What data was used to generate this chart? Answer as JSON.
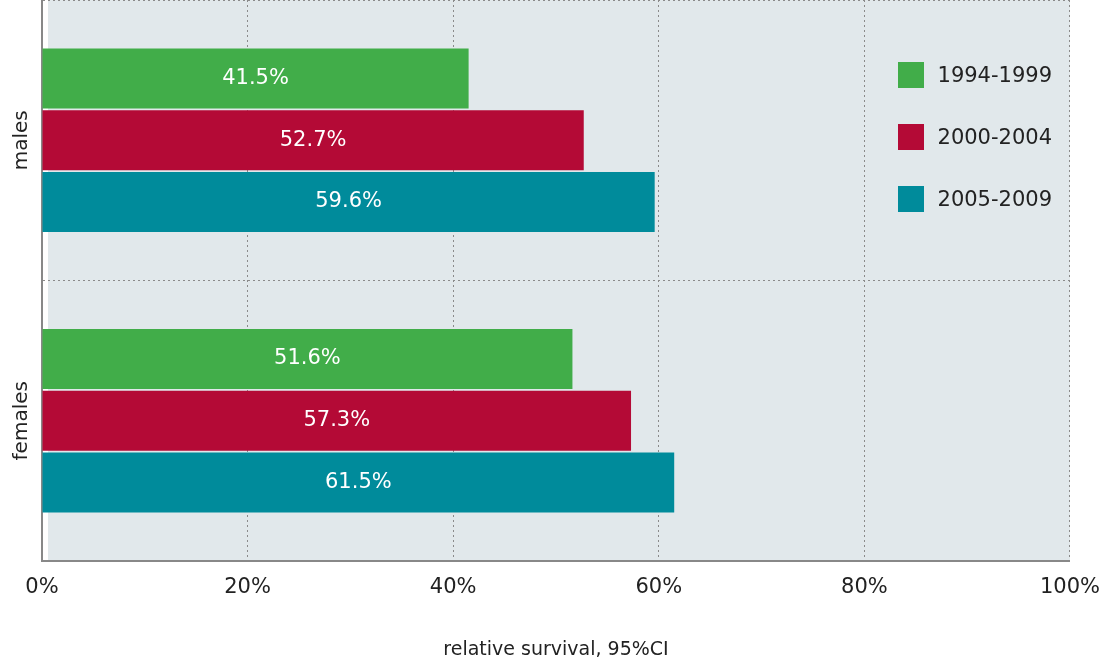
{
  "chart_data": {
    "type": "bar",
    "orientation": "horizontal",
    "xlabel": "relative survival, 95%CI",
    "categories": [
      "males",
      "females"
    ],
    "series": [
      {
        "name": "1994-1999",
        "color": "#41ad49",
        "values": [
          41.5,
          51.6
        ],
        "value_labels": [
          "41.5%",
          "51.6%"
        ]
      },
      {
        "name": "2000-2004",
        "color": "#b40a36",
        "values": [
          52.7,
          57.3
        ],
        "value_labels": [
          "52.7%",
          "57.3%"
        ]
      },
      {
        "name": "2005-2009",
        "color": "#008b9b",
        "values": [
          59.6,
          61.5
        ],
        "value_labels": [
          "59.6%",
          "61.5%"
        ]
      }
    ],
    "xlim": [
      0,
      100
    ],
    "xticks": [
      {
        "value": 0,
        "label": "0%"
      },
      {
        "value": 20,
        "label": "20%"
      },
      {
        "value": 40,
        "label": "40%"
      },
      {
        "value": 60,
        "label": "60%"
      },
      {
        "value": 80,
        "label": "80%"
      },
      {
        "value": 100,
        "label": "100%"
      }
    ],
    "grid": true,
    "legend": "top right"
  }
}
